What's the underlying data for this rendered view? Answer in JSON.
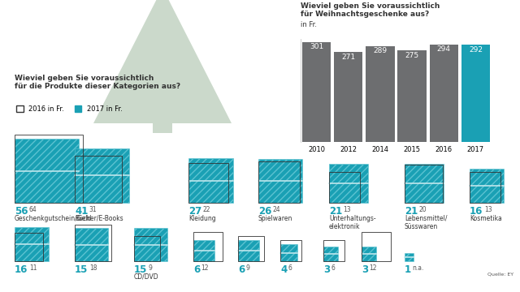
{
  "chart_data": [
    {
      "type": "bar",
      "title": "Wieviel geben Sie voraussichtlich\nfür Weihnachtsgeschenke aus?",
      "subtitle": "in Fr.",
      "categories": [
        "2010",
        "2012",
        "2014",
        "2015",
        "2016",
        "2017"
      ],
      "values": [
        301,
        271,
        289,
        275,
        294,
        292
      ],
      "colors": [
        "#6d6e70",
        "#6d6e70",
        "#6d6e70",
        "#6d6e70",
        "#6d6e70",
        "#1aa0b4"
      ],
      "ylim": [
        0,
        310
      ],
      "yticks": [],
      "data_labels": true,
      "tick_labels": "x"
    },
    {
      "type": "square",
      "title": "Wieviel geben Sie voraussichtlich\nfür die Produkte dieser Kategorien aus?",
      "categories": [
        "Geschenkgutschein/Geld",
        "Bücher/E-Books",
        "Kleidung",
        "Spielwaren",
        "Unterhaltungs-\nelektronik",
        "Lebensmittel/\nSüsswaren",
        "Kosmetika",
        null,
        null,
        "CD/DVD",
        null,
        null,
        null,
        null,
        null,
        null
      ],
      "series": [
        {
          "name": "2016 in Fr.",
          "color": "#ffffff",
          "values": [
            64,
            31,
            22,
            24,
            13,
            20,
            13,
            11,
            18,
            9,
            12,
            9,
            6,
            6,
            12,
            null
          ],
          "value_labels": [
            "64",
            "31",
            "22",
            "24",
            "13",
            "20",
            "13",
            "11",
            "18",
            "9",
            "12",
            "9",
            "6",
            "6",
            "12",
            "n.a."
          ]
        },
        {
          "name": "2017 in Fr.",
          "color": "#1aa0b4",
          "values": [
            56,
            41,
            27,
            26,
            21,
            21,
            16,
            16,
            15,
            15,
            6,
            6,
            4,
            3,
            3,
            1
          ]
        }
      ],
      "legend": "upper left",
      "data_labels": true,
      "annotations": [
        "Quelle: EY"
      ]
    }
  ]
}
